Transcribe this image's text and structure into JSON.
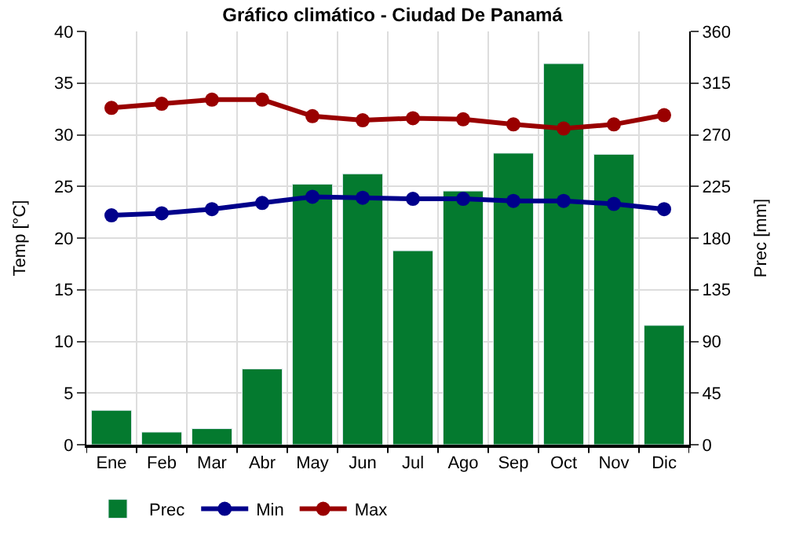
{
  "chart_data": {
    "type": "bar",
    "title": "Gráfico climático - Ciudad De Panamá",
    "ylabel": "Temp [°C]",
    "y2label": "Prec [mm]",
    "categories": [
      "Ene",
      "Feb",
      "Mar",
      "Abr",
      "May",
      "Jun",
      "Jul",
      "Ago",
      "Sep",
      "Oct",
      "Nov",
      "Dic"
    ],
    "series": [
      {
        "name": "Prec",
        "axis": "y2",
        "color": "#047a2f",
        "values": [
          30,
          11,
          14,
          66,
          227,
          236,
          169,
          221,
          254,
          332,
          253,
          104
        ]
      },
      {
        "name": "Min",
        "type": "line",
        "axis": "y",
        "color": "#00008b",
        "marker": "circle",
        "values": [
          22.2,
          22.4,
          22.8,
          23.4,
          24.0,
          23.9,
          23.8,
          23.8,
          23.6,
          23.6,
          23.3,
          22.8
        ]
      },
      {
        "name": "Max",
        "type": "line",
        "axis": "y",
        "color": "#990000",
        "marker": "circle",
        "values": [
          32.6,
          33.0,
          33.4,
          33.4,
          31.8,
          31.4,
          31.6,
          31.5,
          31.0,
          30.6,
          31.0,
          31.9
        ]
      }
    ],
    "ylim": [
      0,
      40
    ],
    "yticks": [
      0,
      5,
      10,
      15,
      20,
      25,
      30,
      35,
      40
    ],
    "y2lim": [
      0,
      360
    ],
    "y2ticks": [
      0,
      45,
      90,
      135,
      180,
      225,
      270,
      315,
      360
    ],
    "grid": true,
    "legend": "bottom left"
  }
}
